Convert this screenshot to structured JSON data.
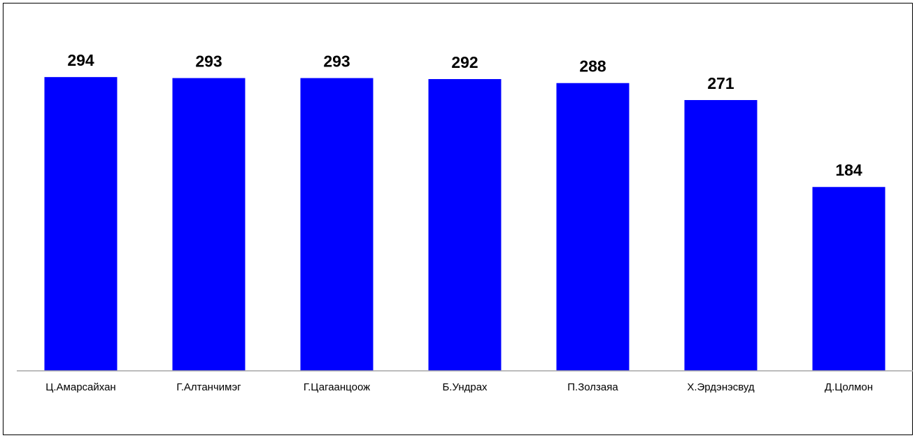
{
  "chart_data": {
    "type": "bar",
    "categories": [
      "Ц.Амарсайхан",
      "Г.Алтанчимэг",
      "Г.Цагаанцоож",
      "Б.Ундрах",
      "П.Золзаяа",
      "Х.Эрдэнэсвуд",
      "Д.Цолмон"
    ],
    "values": [
      294,
      293,
      293,
      292,
      288,
      271,
      184
    ],
    "title": "",
    "xlabel": "",
    "ylabel": "",
    "ylim": [
      0,
      300
    ],
    "grid": false,
    "legend": "none",
    "data_labels": true,
    "colors": {
      "bar": "#0000FF",
      "axis": "#A6A6A6",
      "text": "#000000"
    }
  }
}
